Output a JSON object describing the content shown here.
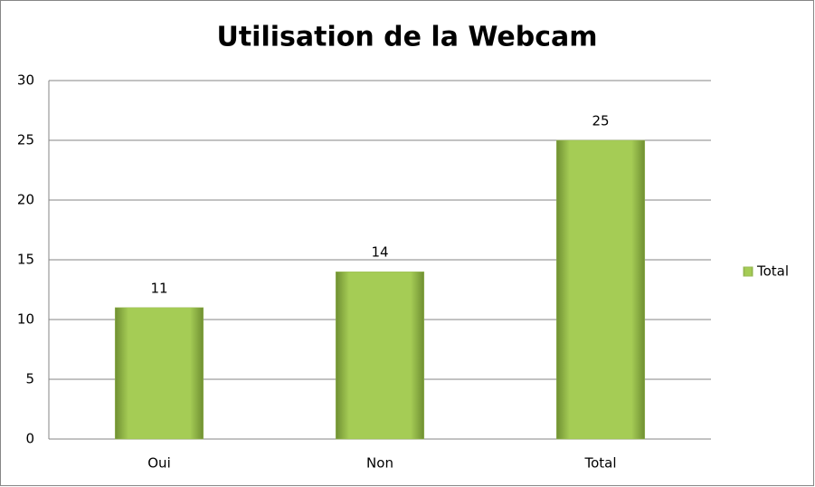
{
  "chart_data": {
    "type": "bar",
    "title": "Utilisation de la Webcam",
    "categories": [
      "Oui",
      "Non",
      "Total"
    ],
    "series": [
      {
        "name": "Total",
        "color": "#9bbb59",
        "values": [
          11,
          14,
          25
        ]
      }
    ],
    "ylim": [
      0,
      30
    ],
    "yticks": [
      0,
      5,
      10,
      15,
      20,
      25,
      30
    ],
    "grid": true,
    "legend": "right",
    "data_labels": true
  }
}
